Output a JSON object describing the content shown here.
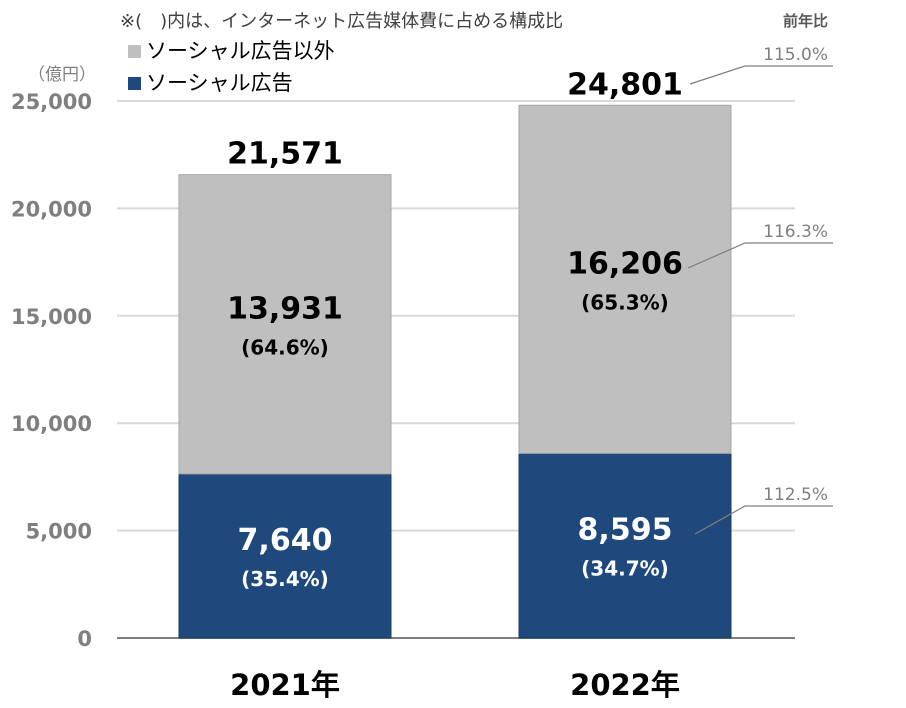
{
  "chart_data": {
    "type": "bar",
    "stacked": true,
    "note": "※(　)内は、インターネット広告媒体費に占める構成比",
    "unit": "（億円）",
    "yoy_header": "前年比",
    "categories": [
      "2021年",
      "2022年"
    ],
    "series": [
      {
        "name": "ソーシャル広告",
        "values": [
          7640,
          8595
        ],
        "labels": [
          "7,640",
          "8,595"
        ],
        "shares": [
          "(35.4%)",
          "(34.7%)"
        ],
        "yoy": "112.5%",
        "color": "#1f497d",
        "text_color": "#ffffff"
      },
      {
        "name": "ソーシャル広告以外",
        "values": [
          13931,
          16206
        ],
        "labels": [
          "13,931",
          "16,206"
        ],
        "shares": [
          "(64.6%)",
          "(65.3%)"
        ],
        "yoy": "116.3%",
        "color": "#bfbfbf",
        "text_color": "#000000"
      }
    ],
    "totals": [
      21571,
      24801
    ],
    "total_labels": [
      "21,571",
      "24,801"
    ],
    "total_yoy": "115.0%",
    "ylim": [
      0,
      25000
    ],
    "yticks": [
      0,
      5000,
      10000,
      15000,
      20000,
      25000
    ],
    "ytick_labels": [
      "0",
      "5,000",
      "10,000",
      "15,000",
      "20,000",
      "25,000"
    ],
    "grid": true,
    "legend_position": "top-left"
  }
}
